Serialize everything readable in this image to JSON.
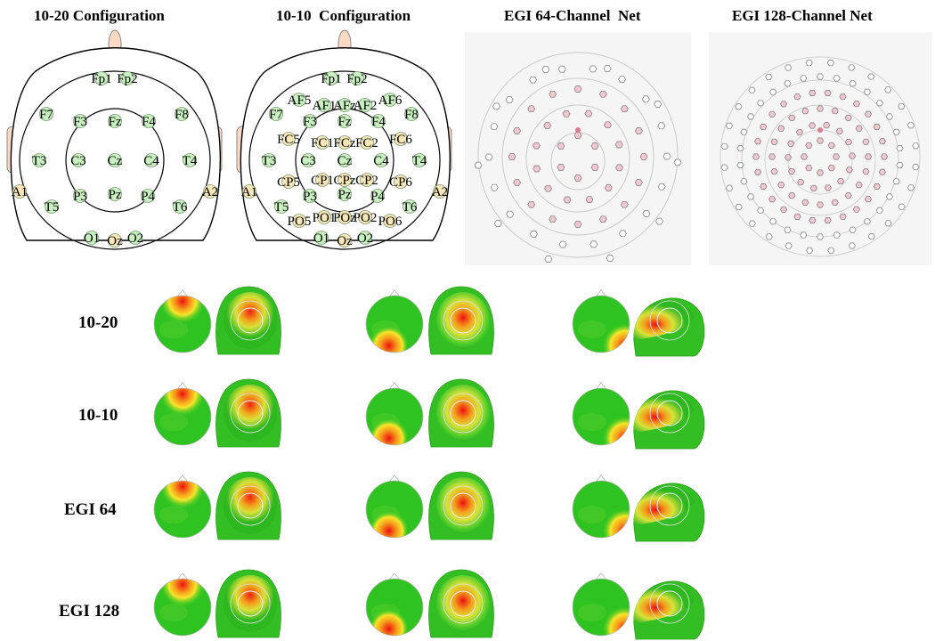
{
  "titles": {
    "t1020": "10-20 Configuration",
    "t1010": "10-10  Configuration",
    "egi64": "EGI 64-Channel  Net",
    "egi128": "EGI 128-Channel Net"
  },
  "electrodes_1020": [
    "Fp1",
    "Fp2",
    "F7",
    "F3",
    "Fz",
    "F4",
    "F8",
    "T3",
    "C3",
    "Cz",
    "C4",
    "T4",
    "A1",
    "A2",
    "T5",
    "P3",
    "Pz",
    "P4",
    "T6",
    "O1",
    "Oz",
    "O2"
  ],
  "electrodes_1010": [
    "Fp1",
    "Fp2",
    "AF5",
    "AF1",
    "AFz",
    "AF2",
    "AF6",
    "F7",
    "F3",
    "Fz",
    "F4",
    "F8",
    "FC5",
    "FC1",
    "FCz",
    "FC2",
    "FC6",
    "T3",
    "C3",
    "Cz",
    "C4",
    "T4",
    "A1",
    "A2",
    "CP5",
    "CP1",
    "CPz",
    "CP2",
    "CP6",
    "T5",
    "P3",
    "Pz",
    "P4",
    "T6",
    "PO5",
    "PO1",
    "POz",
    "PO2",
    "PO6",
    "O1",
    "Oz",
    "O2"
  ],
  "rows": [
    {
      "label": "10-20"
    },
    {
      "label": "10-10"
    },
    {
      "label": "EGI 64"
    },
    {
      "label": "EGI 128"
    }
  ],
  "colors": {
    "electrode_fill": "#c8f0c0",
    "electrode_ref": "#f6e6b8",
    "ear_fill": "#fbd9c4",
    "map_green": "#33cc22",
    "map_red": "#ee1111",
    "map_yellow": "#f7e52a",
    "egi_marker": "#e07a90"
  }
}
